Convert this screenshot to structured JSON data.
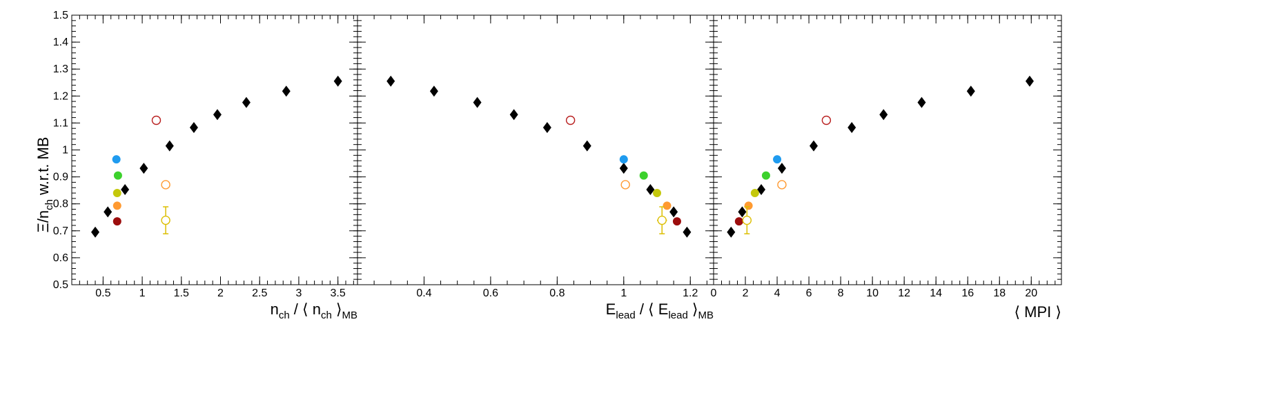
{
  "chart_data": [
    {
      "type": "scatter",
      "panel": 1,
      "title": "",
      "ylabel": {
        "main": "Ξ/n",
        "sub": "ch",
        "rest": " w.r.t. MB"
      },
      "xlabel": {
        "p1": "n",
        "s1": "ch",
        "p2": " / ⟨ n",
        "s2": "ch",
        "p3": " ⟩",
        "s3": "MB"
      },
      "xlim": [
        0.1,
        3.75
      ],
      "ylim": [
        0.5,
        1.5
      ],
      "x_ticks": [
        0.5,
        1,
        1.5,
        2,
        2.5,
        3,
        3.5
      ],
      "x_tick_labels": [
        "0.5",
        "1",
        "1.5",
        "2",
        "2.5",
        "3",
        "3.5"
      ],
      "x_minor_step": 0.1,
      "y_ticks": [
        0.5,
        0.6,
        0.7,
        0.8,
        0.9,
        1.0,
        1.1,
        1.2,
        1.3,
        1.4,
        1.5
      ],
      "y_tick_labels": [
        "0.5",
        "0.6",
        "0.7",
        "0.8",
        "0.9",
        "1",
        "1.1",
        "1.2",
        "1.3",
        "1.4",
        "1.5"
      ],
      "y_minor_step": 0.02,
      "series": [
        {
          "marker": "diamond",
          "color": "#000000",
          "x": [
            0.4,
            0.56,
            0.78,
            1.02,
            1.35,
            1.66,
            1.96,
            2.33,
            2.84,
            3.5
          ],
          "y": [
            0.695,
            0.77,
            0.853,
            0.932,
            1.015,
            1.083,
            1.131,
            1.176,
            1.218,
            1.255
          ]
        },
        {
          "marker": "circle",
          "color": "#1f9bef",
          "x": [
            0.67
          ],
          "y": [
            0.965
          ]
        },
        {
          "marker": "circle",
          "color": "#3cd12c",
          "x": [
            0.69
          ],
          "y": [
            0.905
          ]
        },
        {
          "marker": "circle",
          "color": "#c4c80c",
          "x": [
            0.68
          ],
          "y": [
            0.84
          ]
        },
        {
          "marker": "circle",
          "color": "#ff9a31",
          "x": [
            0.68
          ],
          "y": [
            0.793
          ]
        },
        {
          "marker": "circle",
          "color": "#9c0d0d",
          "x": [
            0.68
          ],
          "y": [
            0.735
          ]
        },
        {
          "marker": "open-circle",
          "color": "#b81e1e",
          "x": [
            1.18
          ],
          "y": [
            1.11
          ]
        },
        {
          "marker": "open-circle",
          "color": "#ff9a31",
          "x": [
            1.3
          ],
          "y": [
            0.871
          ]
        },
        {
          "marker": "open-circle",
          "color": "#dcbe00",
          "x": [
            1.3
          ],
          "y": [
            0.739
          ],
          "yerr": [
            0.05
          ]
        }
      ]
    },
    {
      "type": "scatter",
      "panel": 2,
      "title": "",
      "xlabel": {
        "p1": "E",
        "s1": "lead",
        "p2": " / ⟨ E",
        "s2": "lead",
        "p3": " ⟩",
        "s3": "MB"
      },
      "xlim": [
        0.2,
        1.27
      ],
      "ylim": [
        0.5,
        1.5
      ],
      "x_ticks": [
        0.4,
        0.6,
        0.8,
        1.0,
        1.2
      ],
      "x_tick_labels": [
        "0.4",
        "0.6",
        "0.8",
        "1",
        "1.2"
      ],
      "x_minor_step": 0.05,
      "series": [
        {
          "marker": "diamond",
          "color": "#000000",
          "x": [
            0.3,
            0.43,
            0.56,
            0.67,
            0.77,
            0.89,
            1.0,
            1.08,
            1.15,
            1.19
          ],
          "y": [
            1.255,
            1.218,
            1.176,
            1.131,
            1.083,
            1.015,
            0.932,
            0.853,
            0.77,
            0.695
          ]
        },
        {
          "marker": "circle",
          "color": "#1f9bef",
          "x": [
            1.0
          ],
          "y": [
            0.965
          ]
        },
        {
          "marker": "circle",
          "color": "#3cd12c",
          "x": [
            1.06
          ],
          "y": [
            0.905
          ]
        },
        {
          "marker": "circle",
          "color": "#c4c80c",
          "x": [
            1.1
          ],
          "y": [
            0.84
          ]
        },
        {
          "marker": "circle",
          "color": "#ff9a31",
          "x": [
            1.13
          ],
          "y": [
            0.793
          ]
        },
        {
          "marker": "circle",
          "color": "#9c0d0d",
          "x": [
            1.16
          ],
          "y": [
            0.735
          ]
        },
        {
          "marker": "open-circle",
          "color": "#b81e1e",
          "x": [
            0.84
          ],
          "y": [
            1.11
          ]
        },
        {
          "marker": "open-circle",
          "color": "#ff9a31",
          "x": [
            1.005
          ],
          "y": [
            0.871
          ]
        },
        {
          "marker": "open-circle",
          "color": "#dcbe00",
          "x": [
            1.115
          ],
          "y": [
            0.739
          ],
          "yerr": [
            0.05
          ],
          "xerr": [
            0.015
          ]
        }
      ]
    },
    {
      "type": "scatter",
      "panel": 3,
      "title": "",
      "xlabel": {
        "p1": "⟨ MPI ⟩"
      },
      "xlim": [
        0,
        21.9
      ],
      "ylim": [
        0.5,
        1.5
      ],
      "x_ticks": [
        0,
        2,
        4,
        6,
        8,
        10,
        12,
        14,
        16,
        18,
        20
      ],
      "x_tick_labels": [
        "0",
        "2",
        "4",
        "6",
        "8",
        "10",
        "12",
        "14",
        "16",
        "18",
        "20"
      ],
      "x_minor_step": 0.5,
      "series": [
        {
          "marker": "diamond",
          "color": "#000000",
          "x": [
            1.1,
            1.8,
            3.0,
            4.3,
            6.3,
            8.7,
            10.7,
            13.1,
            16.2,
            19.9
          ],
          "y": [
            0.695,
            0.77,
            0.853,
            0.932,
            1.015,
            1.083,
            1.131,
            1.176,
            1.218,
            1.255
          ]
        },
        {
          "marker": "circle",
          "color": "#1f9bef",
          "x": [
            4.0
          ],
          "y": [
            0.965
          ]
        },
        {
          "marker": "circle",
          "color": "#3cd12c",
          "x": [
            3.3
          ],
          "y": [
            0.905
          ]
        },
        {
          "marker": "circle",
          "color": "#c4c80c",
          "x": [
            2.6
          ],
          "y": [
            0.84
          ]
        },
        {
          "marker": "circle",
          "color": "#ff9a31",
          "x": [
            2.2
          ],
          "y": [
            0.793
          ]
        },
        {
          "marker": "circle",
          "color": "#9c0d0d",
          "x": [
            1.6
          ],
          "y": [
            0.735
          ]
        },
        {
          "marker": "open-circle",
          "color": "#b81e1e",
          "x": [
            7.1
          ],
          "y": [
            1.11
          ]
        },
        {
          "marker": "open-circle",
          "color": "#ff9a31",
          "x": [
            4.3
          ],
          "y": [
            0.871
          ]
        },
        {
          "marker": "open-circle",
          "color": "#dcbe00",
          "x": [
            2.1
          ],
          "y": [
            0.739
          ],
          "yerr": [
            0.05
          ]
        }
      ]
    }
  ]
}
